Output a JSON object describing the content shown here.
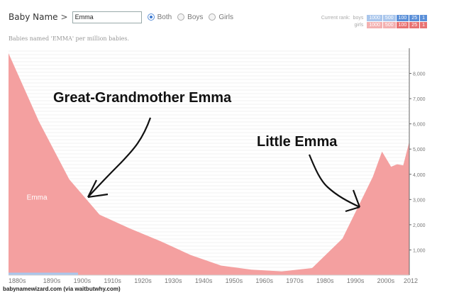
{
  "header": {
    "title": "Baby Name",
    "chevron": ">",
    "search_value": "Emma",
    "options": [
      {
        "label": "Both",
        "selected": true
      },
      {
        "label": "Boys",
        "selected": false
      },
      {
        "label": "Girls",
        "selected": false
      }
    ]
  },
  "rank": {
    "label": "Current rank:",
    "boys_label": "boys",
    "girls_label": "girls",
    "cells": [
      "1000",
      "500",
      "100",
      "25",
      "1"
    ]
  },
  "subtitle": "Babies named 'EMMA' per million babies.",
  "chart_data": {
    "type": "area",
    "series": [
      {
        "name": "Emma",
        "color": "#f4a0a0",
        "x": [
          1880,
          1890,
          1900,
          1910,
          1920,
          1930,
          1940,
          1950,
          1960,
          1970,
          1980,
          1990,
          2000,
          2003,
          2006,
          2008,
          2010,
          2012
        ],
        "values": [
          8800,
          6100,
          3800,
          2400,
          1850,
          1350,
          800,
          380,
          220,
          150,
          280,
          1450,
          3900,
          4900,
          4300,
          4400,
          4350,
          5300
        ]
      }
    ],
    "categories": [
      "1880s",
      "1890s",
      "1900s",
      "1910s",
      "1920s",
      "1930s",
      "1940s",
      "1950s",
      "1960s",
      "1970s",
      "1980s",
      "1990s",
      "2000s",
      "2012"
    ],
    "yticks": [
      "1,000",
      "2,000",
      "3,000",
      "4,000",
      "5,000",
      "6,000",
      "7,000",
      "8,000"
    ],
    "ylim": [
      0,
      9000
    ],
    "xlim": [
      1880,
      2012
    ],
    "annotations": [
      {
        "text": "Great-Grandmother Emma",
        "at_x": 1905
      },
      {
        "text": "Little Emma",
        "at_x": 1995
      }
    ],
    "series_label": "Emma"
  },
  "footer": "babynamewizard.com (via waitbutwhy.com)"
}
